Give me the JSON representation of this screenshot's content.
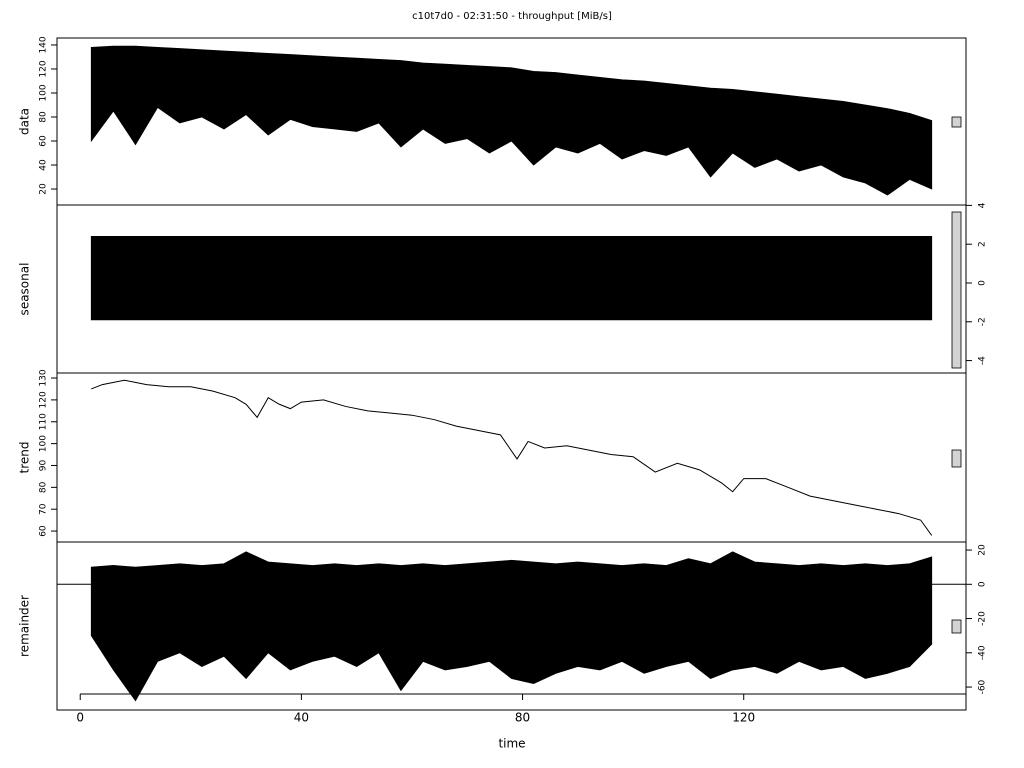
{
  "chart_data": {
    "type": "stl",
    "title": "c10t7d0 - 02:31:50 - throughput [MiB/s]",
    "xlabel": "time",
    "xlim": [
      -4.2,
      160.2
    ],
    "xticks": [
      0,
      40,
      80,
      120
    ],
    "panels": [
      {
        "type": "band",
        "ylabel": "data",
        "yaxis": "left",
        "ylim": [
          6.7,
          145.8
        ],
        "yticks": [
          20,
          40,
          60,
          80,
          100,
          120,
          140
        ],
        "x": [
          2,
          6,
          10,
          14,
          18,
          22,
          26,
          30,
          34,
          38,
          42,
          46,
          50,
          54,
          58,
          62,
          66,
          70,
          74,
          78,
          82,
          86,
          90,
          94,
          98,
          102,
          106,
          110,
          114,
          118,
          122,
          126,
          130,
          134,
          138,
          142,
          146,
          150,
          154
        ],
        "upper": [
          138,
          139,
          139,
          138,
          137,
          136,
          135,
          134,
          133,
          132,
          131,
          130,
          129,
          128,
          127,
          125,
          124,
          123,
          122,
          121,
          118,
          117,
          115,
          113,
          111,
          110,
          108,
          106,
          104,
          103,
          101,
          99,
          97,
          95,
          93,
          90,
          87,
          83,
          77
        ],
        "lower": [
          60,
          85,
          57,
          88,
          75,
          80,
          70,
          82,
          65,
          78,
          72,
          70,
          68,
          75,
          55,
          70,
          58,
          62,
          50,
          60,
          40,
          55,
          50,
          58,
          45,
          52,
          48,
          55,
          30,
          50,
          38,
          45,
          35,
          40,
          30,
          25,
          15,
          28,
          20
        ]
      },
      {
        "type": "band",
        "ylabel": "seasonal",
        "yaxis": "right",
        "ylim": [
          -4.64,
          4.02
        ],
        "yticks": [
          -4,
          -2,
          0,
          2,
          4
        ],
        "x": [
          2,
          154
        ],
        "upper": [
          2.4,
          2.4
        ],
        "lower": [
          -1.9,
          -1.9
        ]
      },
      {
        "type": "line",
        "ylabel": "trend",
        "yaxis": "left",
        "ylim": [
          55.0,
          132.3
        ],
        "yticks": [
          60,
          70,
          80,
          90,
          100,
          110,
          120,
          130
        ],
        "x": [
          2,
          4,
          8,
          12,
          16,
          20,
          24,
          28,
          30,
          32,
          34,
          36,
          38,
          40,
          44,
          48,
          52,
          56,
          60,
          64,
          68,
          72,
          76,
          79,
          81,
          84,
          88,
          92,
          96,
          100,
          104,
          108,
          112,
          116,
          118,
          120,
          124,
          128,
          132,
          136,
          140,
          144,
          148,
          152,
          154
        ],
        "values": [
          125,
          127,
          129,
          127,
          126,
          126,
          124,
          121,
          118,
          112,
          121,
          118,
          116,
          119,
          120,
          117,
          115,
          114,
          113,
          111,
          108,
          106,
          104,
          93,
          101,
          98,
          99,
          97,
          95,
          94,
          87,
          91,
          88,
          82,
          78,
          84,
          84,
          80,
          76,
          74,
          72,
          70,
          68,
          65,
          58
        ]
      },
      {
        "type": "band",
        "ylabel": "remainder",
        "yaxis": "right",
        "ylim": [
          -73.4,
          24.7
        ],
        "yticks": [
          -60,
          -40,
          -20,
          0,
          20
        ],
        "x": [
          2,
          6,
          10,
          14,
          18,
          22,
          26,
          30,
          34,
          38,
          42,
          46,
          50,
          54,
          58,
          62,
          66,
          70,
          74,
          78,
          82,
          86,
          90,
          94,
          98,
          102,
          106,
          110,
          114,
          118,
          122,
          126,
          130,
          134,
          138,
          142,
          146,
          150,
          154
        ],
        "upper": [
          10,
          11,
          10,
          11,
          12,
          11,
          12,
          19,
          13,
          12,
          11,
          12,
          11,
          12,
          11,
          12,
          11,
          12,
          13,
          14,
          13,
          12,
          13,
          12,
          11,
          12,
          11,
          15,
          12,
          19,
          13,
          12,
          11,
          12,
          11,
          12,
          11,
          12,
          16
        ],
        "lower": [
          -30,
          -50,
          -68,
          -45,
          -40,
          -48,
          -42,
          -55,
          -40,
          -50,
          -45,
          -42,
          -48,
          -40,
          -62,
          -45,
          -50,
          -48,
          -45,
          -55,
          -58,
          -52,
          -48,
          -50,
          -45,
          -52,
          -48,
          -45,
          -55,
          -50,
          -48,
          -52,
          -45,
          -50,
          -48,
          -55,
          -52,
          -48,
          -35
        ]
      }
    ]
  }
}
